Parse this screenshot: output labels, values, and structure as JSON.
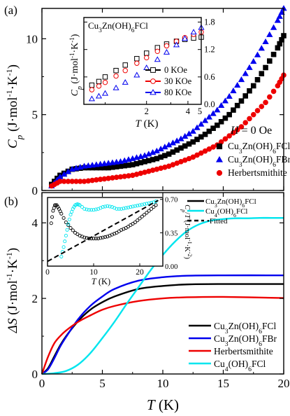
{
  "chart_data": [
    {
      "panel_label": "(a)",
      "type": "scatter",
      "xlabel": "T (K)",
      "ylabel": "C_p (J·mol⁻¹·K⁻¹)",
      "xlim": [
        0,
        20
      ],
      "ylim": [
        0,
        12
      ],
      "x_ticks": [
        0,
        5,
        10,
        15,
        20
      ],
      "y_ticks": [
        0,
        5,
        10
      ],
      "annotation": "H = 0 Oe",
      "legend_position": "bottom-right",
      "series": [
        {
          "name": "Cu3Zn(OH)6FCl",
          "marker": "square",
          "color": "#000000",
          "x": [
            0.8,
            1.5,
            2.5,
            3.5,
            4.5,
            5.5,
            6.5,
            7.5,
            8.5,
            9.5,
            10.5,
            11.5,
            12.5,
            13.5,
            14.5,
            15.5,
            16.5,
            17.5,
            18.5,
            19.5,
            20.0
          ],
          "y": [
            0.4,
            1.0,
            1.4,
            1.5,
            1.5,
            1.5,
            1.6,
            1.7,
            1.9,
            2.1,
            2.4,
            2.8,
            3.2,
            3.7,
            4.3,
            5.0,
            5.9,
            6.9,
            8.1,
            9.4,
            10.2
          ]
        },
        {
          "name": "Cu3Zn(OH)6FBr",
          "marker": "triangle",
          "color": "#0000ee",
          "x": [
            0.8,
            1.5,
            2.5,
            3.5,
            4.5,
            5.5,
            6.5,
            7.5,
            8.5,
            9.5,
            10.5,
            11.5,
            12.5,
            13.5,
            14.5,
            15.5,
            16.5,
            17.5,
            18.5,
            19.5,
            20.0
          ],
          "y": [
            0.3,
            0.9,
            1.4,
            1.6,
            1.7,
            1.8,
            1.9,
            2.1,
            2.3,
            2.6,
            3.0,
            3.4,
            3.9,
            4.6,
            5.3,
            6.2,
            7.3,
            8.5,
            9.8,
            11.2,
            12.0
          ]
        },
        {
          "name": "Herbertsmithite",
          "marker": "circle",
          "color": "#ee0000",
          "x": [
            0.8,
            1.5,
            2.5,
            3.5,
            4.5,
            5.5,
            6.5,
            7.5,
            8.5,
            9.5,
            10.5,
            11.5,
            12.5,
            13.5,
            14.5,
            15.5,
            16.5,
            17.5,
            18.5,
            19.5,
            20.0
          ],
          "y": [
            0.3,
            0.6,
            0.6,
            0.6,
            0.7,
            0.8,
            0.9,
            1.0,
            1.2,
            1.4,
            1.6,
            1.9,
            2.2,
            2.6,
            3.0,
            3.6,
            4.2,
            5.0,
            5.8,
            6.9,
            7.6
          ]
        }
      ],
      "inset": {
        "title": "Cu3Zn(OH)6FCl",
        "xlabel": "T (K)",
        "ylabel": "C_p (J·mol⁻¹·K⁻¹)",
        "xscale": "log",
        "xlim": [
          0.7,
          5
        ],
        "ylim": [
          0,
          1.9
        ],
        "x_ticks": [
          2,
          4
        ],
        "x_ticklabels_extra": [
          "5"
        ],
        "y_ticks": [
          0.0,
          0.6,
          1.2,
          1.8
        ],
        "legend_position": "bottom-right",
        "series": [
          {
            "name": "0 KOe",
            "marker": "square",
            "color": "#000000",
            "x": [
              0.8,
              0.9,
              1.0,
              1.2,
              1.4,
              1.7,
              2.0,
              2.4,
              2.8,
              3.3,
              3.8,
              4.4,
              5.0
            ],
            "y": [
              0.42,
              0.5,
              0.6,
              0.74,
              0.86,
              1.0,
              1.12,
              1.24,
              1.32,
              1.38,
              1.42,
              1.45,
              1.47
            ]
          },
          {
            "name": "30 KOe",
            "marker": "circle",
            "color": "#ee0000",
            "x": [
              0.8,
              0.9,
              1.0,
              1.2,
              1.4,
              1.7,
              2.0,
              2.4,
              2.8,
              3.3,
              3.8,
              4.4,
              5.0
            ],
            "y": [
              0.32,
              0.4,
              0.48,
              0.62,
              0.74,
              0.9,
              1.02,
              1.16,
              1.28,
              1.38,
              1.46,
              1.53,
              1.58
            ]
          },
          {
            "name": "80 KOe",
            "marker": "triangle",
            "color": "#0000ee",
            "x": [
              0.8,
              0.9,
              1.0,
              1.2,
              1.4,
              1.7,
              2.0,
              2.4,
              2.8,
              3.3,
              3.8,
              4.4,
              5.0
            ],
            "y": [
              0.12,
              0.18,
              0.24,
              0.36,
              0.48,
              0.64,
              0.8,
              0.98,
              1.14,
              1.3,
              1.44,
              1.58,
              1.68
            ]
          }
        ]
      }
    },
    {
      "panel_label": "(b)",
      "type": "line",
      "xlabel": "T (K)",
      "ylabel": "ΔS (J·mol⁻¹·K⁻¹)",
      "xlim": [
        0,
        20
      ],
      "ylim": [
        0,
        4.8
      ],
      "x_ticks": [
        0,
        5,
        10,
        15,
        20
      ],
      "y_ticks": [
        0,
        2,
        4
      ],
      "legend_position": "bottom-right",
      "series": [
        {
          "name": "Cu3Zn(OH)6FCl",
          "color": "#000000",
          "x": [
            0,
            0.5,
            1,
            1.5,
            2,
            3,
            4,
            5,
            6,
            8,
            10,
            12,
            15,
            20
          ],
          "y": [
            0,
            0.15,
            0.45,
            0.75,
            1.0,
            1.4,
            1.7,
            1.9,
            2.05,
            2.25,
            2.33,
            2.37,
            2.38,
            2.38
          ]
        },
        {
          "name": "Cu3Zn(OH)6FBr",
          "color": "#0000ee",
          "x": [
            0,
            0.5,
            1,
            1.5,
            2,
            3,
            4,
            5,
            6,
            8,
            10,
            12,
            15,
            20
          ],
          "y": [
            0,
            0.12,
            0.4,
            0.72,
            0.98,
            1.45,
            1.8,
            2.05,
            2.25,
            2.47,
            2.56,
            2.6,
            2.61,
            2.61
          ]
        },
        {
          "name": "Herbertsmithite",
          "color": "#ee0000",
          "x": [
            0,
            0.5,
            1,
            1.5,
            2,
            3,
            4,
            5,
            6,
            8,
            10,
            12,
            15,
            20
          ],
          "y": [
            0,
            0.45,
            0.8,
            1.0,
            1.15,
            1.38,
            1.55,
            1.7,
            1.8,
            1.93,
            2.0,
            2.03,
            2.04,
            2.01
          ]
        },
        {
          "name": "Cu4(OH)6FCl",
          "color": "#00e5ee",
          "x": [
            0,
            1,
            2,
            3,
            4,
            5,
            6,
            7,
            8,
            9,
            10,
            11,
            12,
            13,
            14,
            15,
            16,
            17,
            18,
            19,
            20
          ],
          "y": [
            0,
            0.02,
            0.08,
            0.25,
            0.55,
            0.95,
            1.38,
            1.85,
            2.3,
            2.75,
            3.15,
            3.5,
            3.78,
            3.96,
            4.06,
            4.1,
            4.12,
            4.12,
            4.13,
            4.13,
            4.13
          ]
        }
      ],
      "inset": {
        "xlabel": "T (K)",
        "ylabel": "C_p/T (J·mol⁻¹·K⁻²)",
        "y_axis_side": "right",
        "xlim": [
          0,
          25
        ],
        "ylim": [
          0,
          0.72
        ],
        "x_ticks": [
          0,
          10,
          20
        ],
        "y_ticks": [
          0.0,
          0.35,
          0.7
        ],
        "y_ticklabels": [
          "0.00",
          "0.35",
          "0.70"
        ],
        "legend_position": "top-right",
        "series": [
          {
            "name": "Cu3Zn(OH)6FCl",
            "marker": "open-circle",
            "color": "#000000",
            "x": [
              0.8,
              1.2,
              1.6,
              2.0,
              2.5,
              3,
              4,
              5,
              6,
              7,
              8,
              9,
              10,
              11,
              12,
              13,
              14,
              15,
              16,
              17,
              18,
              19,
              20,
              21,
              22,
              23,
              24
            ],
            "y": [
              0.45,
              0.58,
              0.64,
              0.64,
              0.6,
              0.55,
              0.46,
              0.4,
              0.35,
              0.32,
              0.3,
              0.29,
              0.29,
              0.29,
              0.3,
              0.31,
              0.33,
              0.35,
              0.38,
              0.4,
              0.43,
              0.46,
              0.5,
              0.54,
              0.58,
              0.62,
              0.66
            ]
          },
          {
            "name": "Cu4(OH)6FCl",
            "marker": "open-circle",
            "color": "#00e5ee",
            "x": [
              3,
              3.5,
              4,
              4.5,
              5,
              5.5,
              6,
              6.5,
              7,
              8,
              9,
              10,
              11,
              12,
              13,
              14,
              15,
              16,
              17,
              18,
              19,
              20,
              21,
              22,
              23,
              24
            ],
            "y": [
              0.1,
              0.2,
              0.32,
              0.44,
              0.54,
              0.6,
              0.64,
              0.65,
              0.64,
              0.6,
              0.59,
              0.59,
              0.6,
              0.62,
              0.63,
              0.62,
              0.6,
              0.6,
              0.61,
              0.62,
              0.63,
              0.64,
              0.65,
              0.66,
              0.67,
              0.69
            ]
          },
          {
            "name": "Fitted",
            "style": "dashed",
            "color": "#000000",
            "x": [
              0,
              24
            ],
            "y": [
              0.05,
              0.69
            ]
          }
        ]
      }
    }
  ]
}
